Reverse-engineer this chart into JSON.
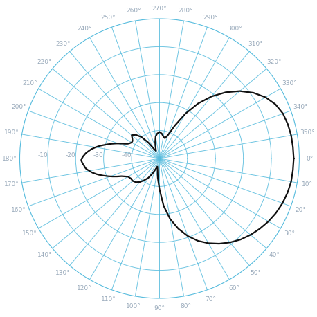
{
  "title": "",
  "grid_color": "#55bbdd",
  "line_color": "#111111",
  "background_color": "#ffffff",
  "text_color": "#99aabb",
  "r_ticks_db": [
    -40,
    -30,
    -20,
    -10
  ],
  "r_tick_labels": [
    "-40",
    "-30",
    "-20",
    "-10"
  ],
  "r_max_db": 0,
  "r_min_db": -50,
  "theta_ticks_deg": [
    0,
    10,
    20,
    30,
    40,
    50,
    60,
    70,
    80,
    90,
    100,
    110,
    120,
    130,
    140,
    150,
    160,
    170,
    180,
    190,
    200,
    210,
    220,
    230,
    240,
    250,
    260,
    270,
    280,
    290,
    300,
    310,
    320,
    330,
    340,
    350
  ],
  "pattern_deg": [
    0,
    5,
    10,
    15,
    20,
    25,
    30,
    35,
    40,
    45,
    50,
    55,
    60,
    65,
    70,
    75,
    80,
    85,
    90,
    95,
    100,
    105,
    110,
    115,
    120,
    125,
    130,
    135,
    140,
    145,
    150,
    155,
    157,
    159,
    161,
    163,
    165,
    166,
    167,
    168,
    169,
    170,
    171,
    172,
    173,
    174,
    175,
    176,
    177,
    178,
    179,
    180,
    181,
    182,
    183,
    184,
    185,
    186,
    187,
    188,
    189,
    190,
    191,
    192,
    193,
    194,
    195,
    197,
    199,
    201,
    203,
    205,
    207,
    210,
    213,
    216,
    220,
    225,
    230,
    235,
    240,
    245,
    250,
    255,
    260,
    265,
    270,
    275,
    280,
    285,
    290,
    295,
    300,
    305,
    310,
    315,
    320,
    325,
    330,
    335,
    340,
    345,
    350,
    355,
    360
  ],
  "pattern_db": [
    -2,
    -2.1,
    -2.2,
    -2.6,
    -3.2,
    -4.0,
    -5.0,
    -6.2,
    -7.5,
    -9.0,
    -10.8,
    -12.8,
    -15.0,
    -17.5,
    -20.5,
    -24.0,
    -28.0,
    -33.0,
    -39.0,
    -43.0,
    -46.0,
    -47.0,
    -46.0,
    -44.0,
    -42.0,
    -40.5,
    -39.0,
    -38.0,
    -37.5,
    -37.5,
    -37.0,
    -35.0,
    -33.5,
    -32.0,
    -30.5,
    -29.0,
    -27.5,
    -26.8,
    -26.2,
    -25.5,
    -25.0,
    -24.5,
    -24.0,
    -23.5,
    -23.2,
    -23.0,
    -22.8,
    -22.5,
    -22.3,
    -22.1,
    -22.0,
    -22.2,
    -22.5,
    -22.8,
    -23.2,
    -23.5,
    -24.0,
    -24.5,
    -25.0,
    -25.5,
    -26.2,
    -26.8,
    -27.5,
    -28.2,
    -29.0,
    -29.8,
    -30.5,
    -32.0,
    -33.5,
    -35.0,
    -36.5,
    -37.5,
    -38.0,
    -38.5,
    -38.5,
    -38.0,
    -37.0,
    -38.0,
    -40.0,
    -43.0,
    -46.0,
    -47.0,
    -46.0,
    -44.0,
    -42.0,
    -41.0,
    -40.5,
    -41.0,
    -42.0,
    -42.5,
    -41.0,
    -37.0,
    -31.5,
    -26.0,
    -21.0,
    -16.5,
    -12.5,
    -9.0,
    -6.2,
    -4.2,
    -3.0,
    -2.5,
    -2.2,
    -2.1,
    -2
  ]
}
